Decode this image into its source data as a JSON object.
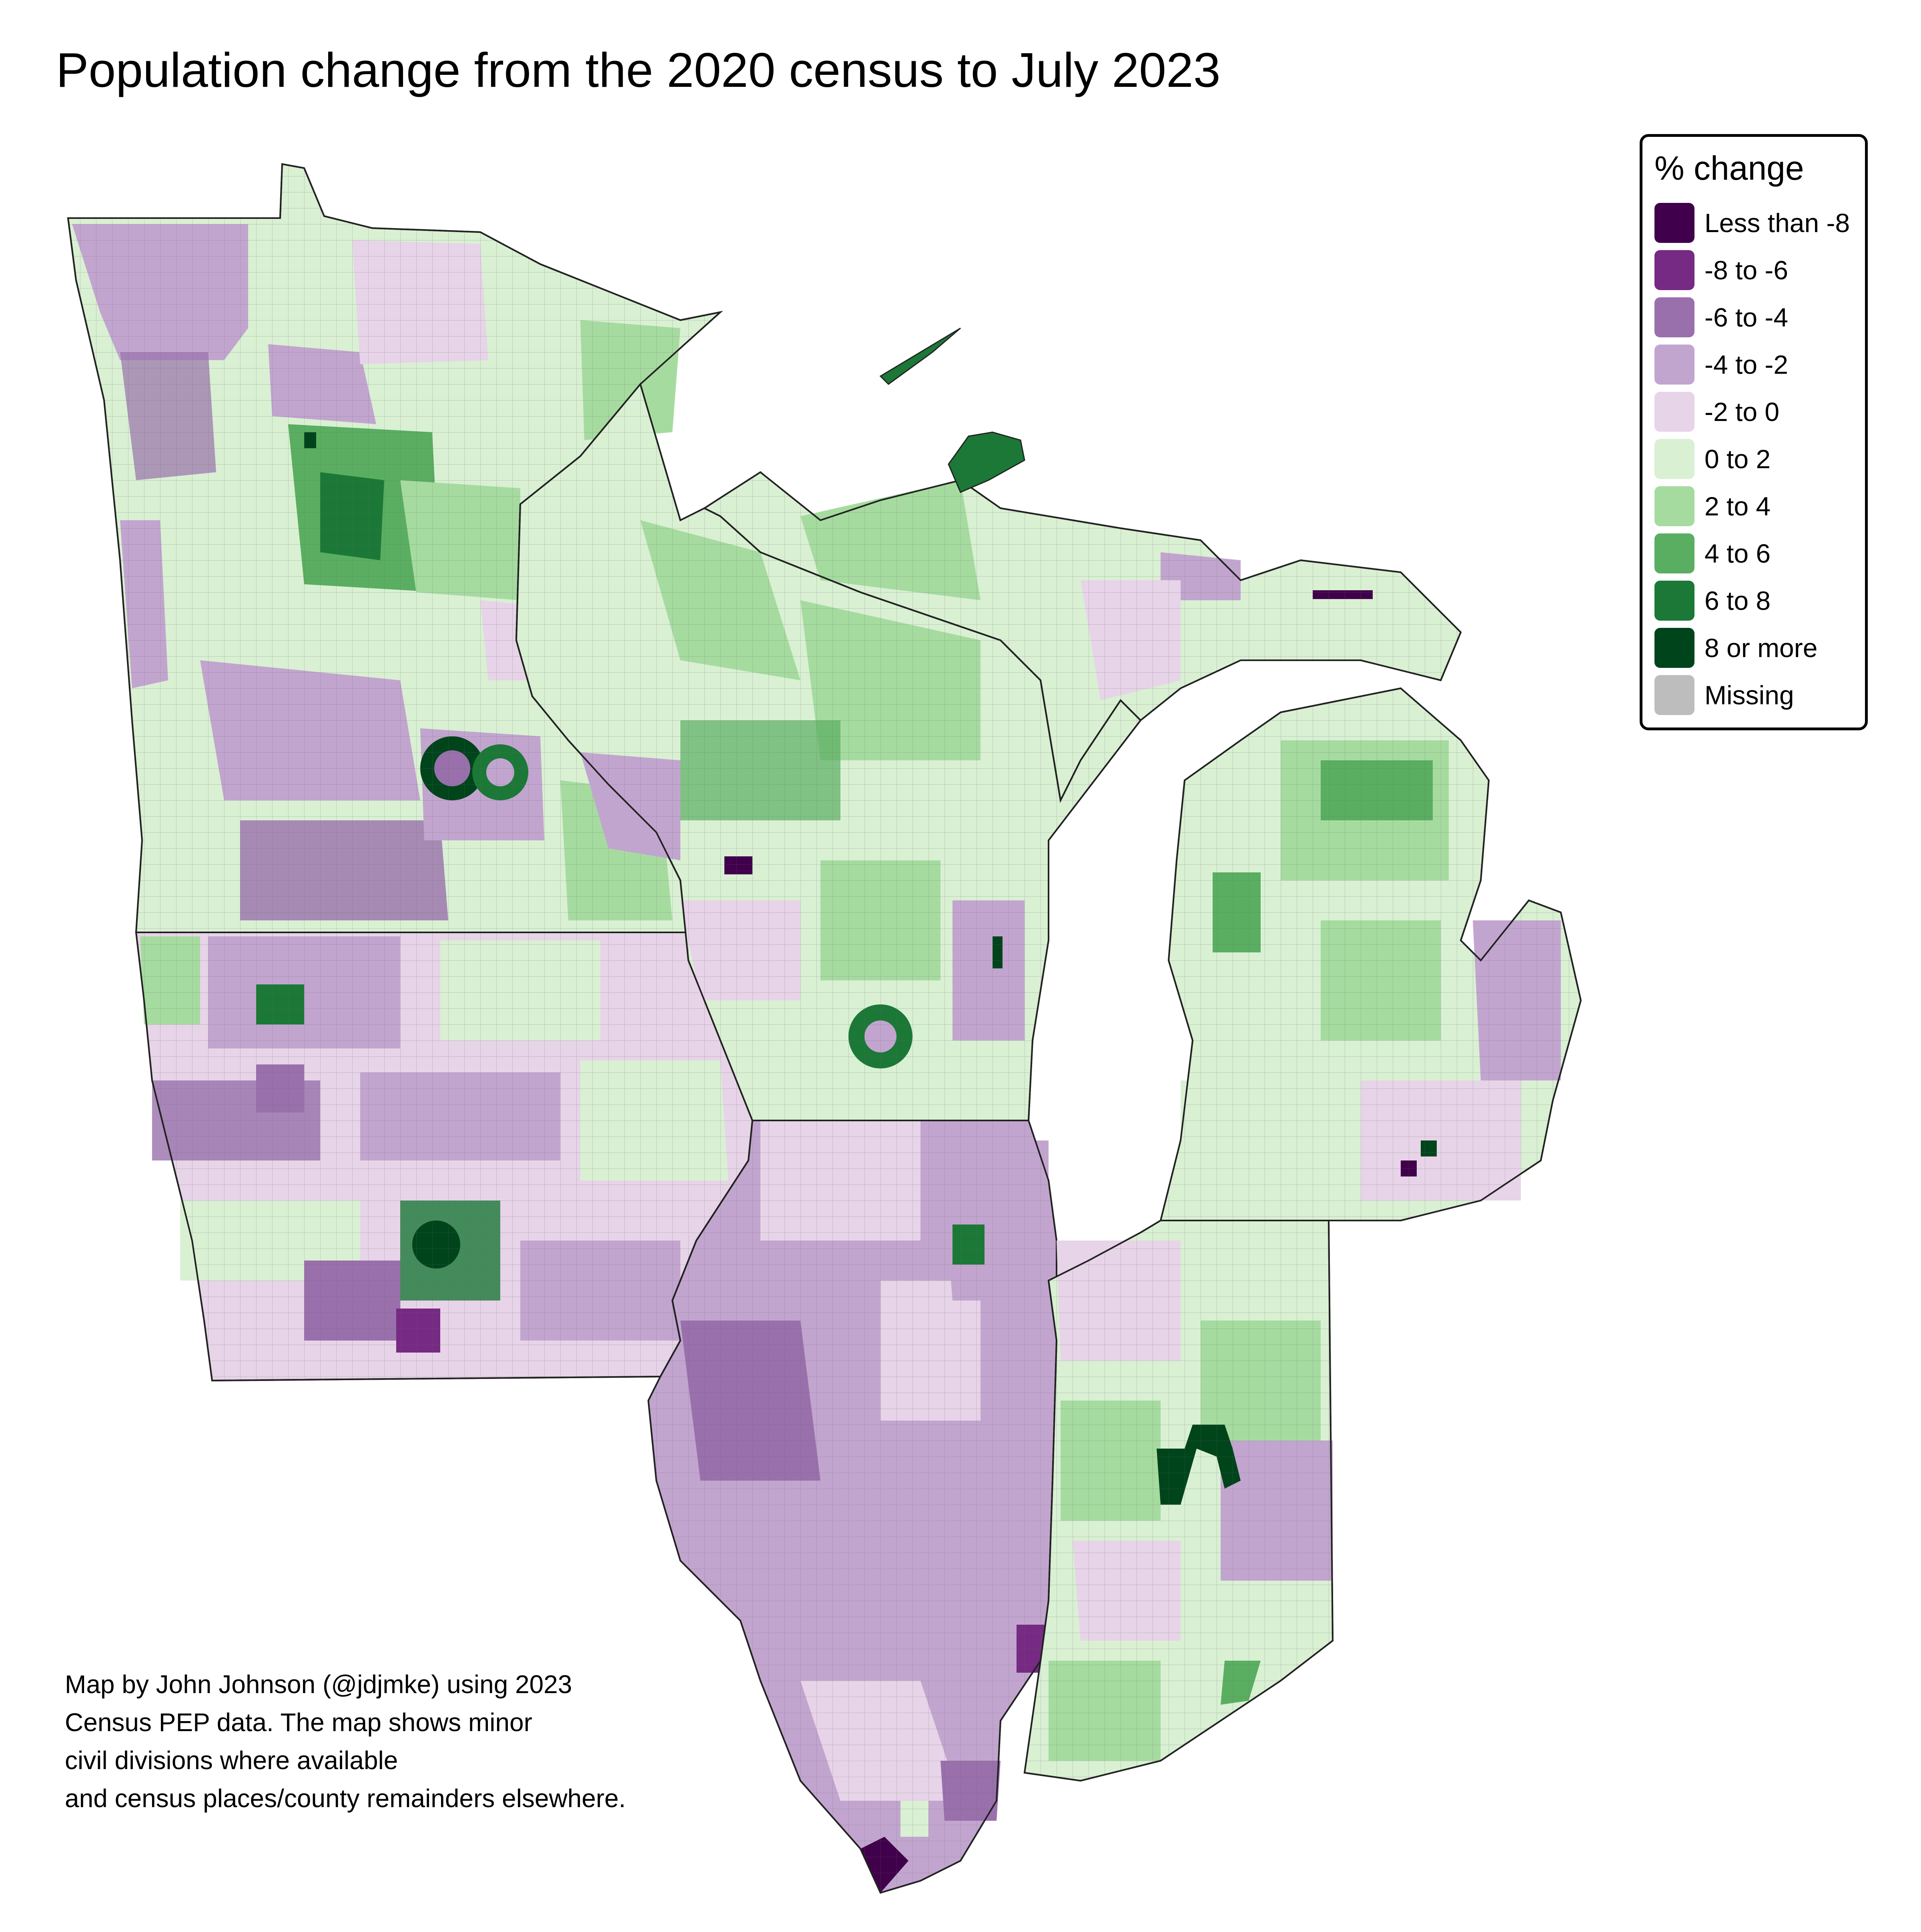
{
  "title": "Population change from the 2020 census to July 2023",
  "legend": {
    "title": "% change",
    "items": [
      {
        "label": "Less than -8",
        "color": "#40004b"
      },
      {
        "label": "-8 to -6",
        "color": "#762a83"
      },
      {
        "label": "-6 to -4",
        "color": "#9970ab"
      },
      {
        "label": "-4 to -2",
        "color": "#c2a5cf"
      },
      {
        "label": "-2 to 0",
        "color": "#e7d4e8"
      },
      {
        "label": "0 to 2",
        "color": "#d9f0d3"
      },
      {
        "label": "2 to 4",
        "color": "#a6dba0"
      },
      {
        "label": "4 to 6",
        "color": "#5aae61"
      },
      {
        "label": "6 to 8",
        "color": "#1b7837"
      },
      {
        "label": "8 or more",
        "color": "#00441b"
      },
      {
        "label": "Missing",
        "color": "#bdbdbd"
      }
    ]
  },
  "credit": {
    "lines": [
      "Map by John Johnson (@jdjmke) using 2023",
      "Census PEP data. The map shows minor",
      "civil divisions where available",
      "and census places/county remainders elsewhere."
    ]
  }
}
